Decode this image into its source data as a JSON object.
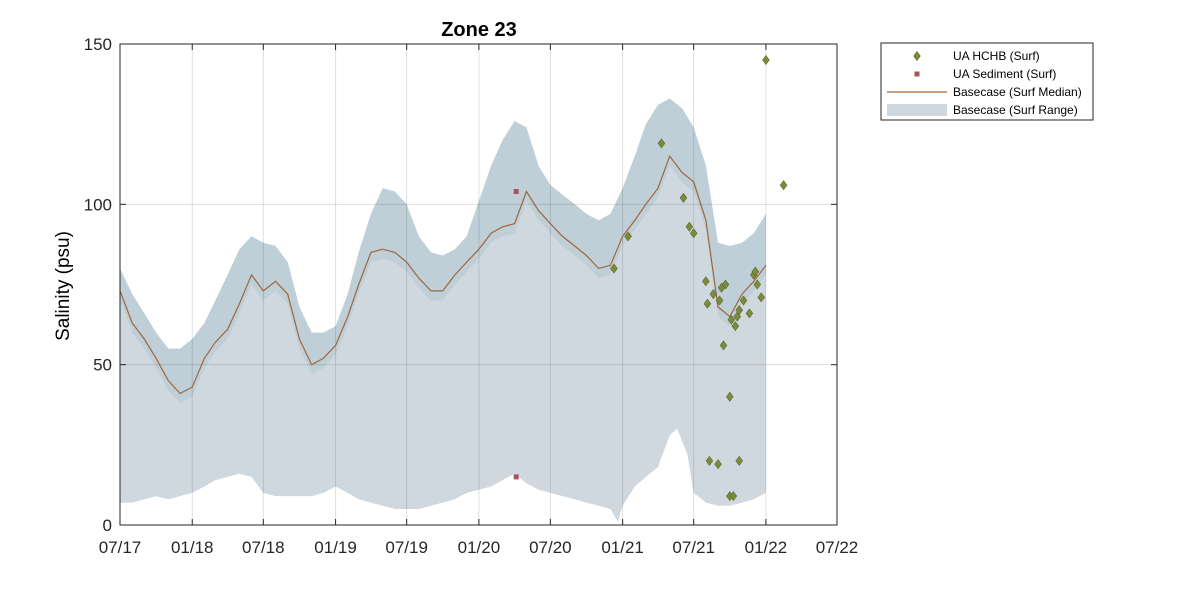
{
  "chart_data": {
    "type": "line",
    "title": "Zone 23",
    "xlabel": "",
    "ylabel": "Salinity (psu)",
    "ylim": [
      0,
      150
    ],
    "xlim": [
      "2017-07-01",
      "2022-07-01"
    ],
    "x_ticks": [
      "07/17",
      "01/18",
      "07/18",
      "01/19",
      "07/19",
      "01/20",
      "07/20",
      "01/21",
      "07/21",
      "01/22",
      "07/22"
    ],
    "y_ticks": [
      "0",
      "50",
      "100",
      "150"
    ],
    "grid": true,
    "legend_position": "outside-top-right",
    "colors": {
      "hchb": "#7b8c3d",
      "hchb_edge": "#5a6a2a",
      "sediment": "#a8545c",
      "median": "#a0663a",
      "range_fill": "#cfd8de",
      "range_fill_upper": "#b7ccd6"
    },
    "series": [
      {
        "name": "UA HCHB (Surf)",
        "kind": "scatter",
        "points": [
          [
            "2020-12-10",
            80
          ],
          [
            "2021-01-15",
            90
          ],
          [
            "2021-04-10",
            119
          ],
          [
            "2021-06-05",
            102
          ],
          [
            "2021-06-20",
            93
          ],
          [
            "2021-07-01",
            91
          ],
          [
            "2021-08-01",
            76
          ],
          [
            "2021-08-05",
            69
          ],
          [
            "2021-08-10",
            20
          ],
          [
            "2021-08-20",
            72
          ],
          [
            "2021-09-01",
            19
          ],
          [
            "2021-09-05",
            70
          ],
          [
            "2021-09-10",
            74
          ],
          [
            "2021-09-15",
            56
          ],
          [
            "2021-09-20",
            75
          ],
          [
            "2021-10-01",
            40
          ],
          [
            "2021-10-01",
            9
          ],
          [
            "2021-10-05",
            64
          ],
          [
            "2021-10-10",
            9
          ],
          [
            "2021-10-15",
            62
          ],
          [
            "2021-10-20",
            65
          ],
          [
            "2021-10-25",
            67
          ],
          [
            "2021-10-25",
            20
          ],
          [
            "2021-11-05",
            70
          ],
          [
            "2021-11-20",
            66
          ],
          [
            "2021-12-01",
            78
          ],
          [
            "2021-12-05",
            79
          ],
          [
            "2021-12-10",
            75
          ],
          [
            "2021-12-20",
            71
          ],
          [
            "2022-01-01",
            145
          ],
          [
            "2022-02-15",
            106
          ]
        ]
      },
      {
        "name": "UA Sediment (Surf)",
        "kind": "scatter",
        "points": [
          [
            "2020-04-05",
            104
          ],
          [
            "2020-04-05",
            15
          ]
        ]
      },
      {
        "name": "Basecase (Surf Median)",
        "kind": "line",
        "points": [
          [
            "2017-07-01",
            73
          ],
          [
            "2017-08-01",
            63
          ],
          [
            "2017-09-01",
            58
          ],
          [
            "2017-10-01",
            52
          ],
          [
            "2017-11-01",
            45
          ],
          [
            "2017-12-01",
            41
          ],
          [
            "2018-01-01",
            43
          ],
          [
            "2018-02-01",
            52
          ],
          [
            "2018-03-01",
            57
          ],
          [
            "2018-04-01",
            61
          ],
          [
            "2018-05-01",
            69
          ],
          [
            "2018-06-01",
            78
          ],
          [
            "2018-07-01",
            73
          ],
          [
            "2018-08-01",
            76
          ],
          [
            "2018-09-01",
            72
          ],
          [
            "2018-10-01",
            58
          ],
          [
            "2018-11-01",
            50
          ],
          [
            "2018-12-01",
            52
          ],
          [
            "2019-01-01",
            56
          ],
          [
            "2019-02-01",
            65
          ],
          [
            "2019-03-01",
            75
          ],
          [
            "2019-04-01",
            85
          ],
          [
            "2019-05-01",
            86
          ],
          [
            "2019-06-01",
            85
          ],
          [
            "2019-07-01",
            82
          ],
          [
            "2019-08-01",
            77
          ],
          [
            "2019-09-01",
            73
          ],
          [
            "2019-10-01",
            73
          ],
          [
            "2019-11-01",
            78
          ],
          [
            "2019-12-01",
            82
          ],
          [
            "2020-01-01",
            86
          ],
          [
            "2020-02-01",
            91
          ],
          [
            "2020-03-01",
            93
          ],
          [
            "2020-04-01",
            94
          ],
          [
            "2020-05-01",
            104
          ],
          [
            "2020-06-01",
            98
          ],
          [
            "2020-07-01",
            94
          ],
          [
            "2020-08-01",
            90
          ],
          [
            "2020-09-01",
            87
          ],
          [
            "2020-10-01",
            84
          ],
          [
            "2020-11-01",
            80
          ],
          [
            "2020-12-01",
            81
          ],
          [
            "2021-01-01",
            90
          ],
          [
            "2021-02-01",
            95
          ],
          [
            "2021-03-01",
            100
          ],
          [
            "2021-04-01",
            105
          ],
          [
            "2021-05-01",
            115
          ],
          [
            "2021-06-01",
            110
          ],
          [
            "2021-07-01",
            107
          ],
          [
            "2021-08-01",
            95
          ],
          [
            "2021-09-01",
            68
          ],
          [
            "2021-10-01",
            65
          ],
          [
            "2021-11-01",
            72
          ],
          [
            "2021-12-01",
            76
          ],
          [
            "2022-01-01",
            81
          ]
        ]
      },
      {
        "name": "Basecase (Surf Range)",
        "kind": "area",
        "upper": [
          [
            "2017-07-01",
            80
          ],
          [
            "2017-08-01",
            72
          ],
          [
            "2017-09-01",
            66
          ],
          [
            "2017-10-01",
            60
          ],
          [
            "2017-11-01",
            55
          ],
          [
            "2017-12-01",
            55
          ],
          [
            "2018-01-01",
            58
          ],
          [
            "2018-02-01",
            63
          ],
          [
            "2018-03-01",
            70
          ],
          [
            "2018-04-01",
            78
          ],
          [
            "2018-05-01",
            86
          ],
          [
            "2018-06-01",
            90
          ],
          [
            "2018-07-01",
            88
          ],
          [
            "2018-08-01",
            87
          ],
          [
            "2018-09-01",
            82
          ],
          [
            "2018-10-01",
            68
          ],
          [
            "2018-11-01",
            60
          ],
          [
            "2018-12-01",
            60
          ],
          [
            "2019-01-01",
            62
          ],
          [
            "2019-02-01",
            72
          ],
          [
            "2019-03-01",
            85
          ],
          [
            "2019-04-01",
            97
          ],
          [
            "2019-05-01",
            105
          ],
          [
            "2019-06-01",
            104
          ],
          [
            "2019-07-01",
            100
          ],
          [
            "2019-08-01",
            90
          ],
          [
            "2019-09-01",
            85
          ],
          [
            "2019-10-01",
            84
          ],
          [
            "2019-11-01",
            86
          ],
          [
            "2019-12-01",
            90
          ],
          [
            "2020-01-01",
            101
          ],
          [
            "2020-02-01",
            112
          ],
          [
            "2020-03-01",
            120
          ],
          [
            "2020-04-01",
            126
          ],
          [
            "2020-05-01",
            124
          ],
          [
            "2020-06-01",
            112
          ],
          [
            "2020-07-01",
            106
          ],
          [
            "2020-08-01",
            103
          ],
          [
            "2020-09-01",
            100
          ],
          [
            "2020-10-01",
            97
          ],
          [
            "2020-11-01",
            95
          ],
          [
            "2020-12-01",
            97
          ],
          [
            "2021-01-01",
            105
          ],
          [
            "2021-02-01",
            115
          ],
          [
            "2021-03-01",
            125
          ],
          [
            "2021-04-01",
            131
          ],
          [
            "2021-05-01",
            133
          ],
          [
            "2021-06-01",
            130
          ],
          [
            "2021-07-01",
            124
          ],
          [
            "2021-08-01",
            112
          ],
          [
            "2021-09-01",
            88
          ],
          [
            "2021-10-01",
            87
          ],
          [
            "2021-11-01",
            88
          ],
          [
            "2021-12-01",
            91
          ],
          [
            "2022-01-01",
            97
          ]
        ],
        "lower": [
          [
            "2017-07-01",
            7
          ],
          [
            "2017-08-01",
            7
          ],
          [
            "2017-09-01",
            8
          ],
          [
            "2017-10-01",
            9
          ],
          [
            "2017-11-01",
            8
          ],
          [
            "2017-12-01",
            9
          ],
          [
            "2018-01-01",
            10
          ],
          [
            "2018-02-01",
            12
          ],
          [
            "2018-03-01",
            14
          ],
          [
            "2018-04-01",
            15
          ],
          [
            "2018-05-01",
            16
          ],
          [
            "2018-06-01",
            15
          ],
          [
            "2018-07-01",
            10
          ],
          [
            "2018-08-01",
            9
          ],
          [
            "2018-09-01",
            9
          ],
          [
            "2018-10-01",
            9
          ],
          [
            "2018-11-01",
            9
          ],
          [
            "2018-12-01",
            10
          ],
          [
            "2019-01-01",
            12
          ],
          [
            "2019-02-01",
            10
          ],
          [
            "2019-03-01",
            8
          ],
          [
            "2019-04-01",
            7
          ],
          [
            "2019-05-01",
            6
          ],
          [
            "2019-06-01",
            5
          ],
          [
            "2019-07-01",
            5
          ],
          [
            "2019-08-01",
            5
          ],
          [
            "2019-09-01",
            6
          ],
          [
            "2019-10-01",
            7
          ],
          [
            "2019-11-01",
            8
          ],
          [
            "2019-12-01",
            10
          ],
          [
            "2020-01-01",
            11
          ],
          [
            "2020-02-01",
            12
          ],
          [
            "2020-03-01",
            14
          ],
          [
            "2020-04-01",
            16
          ],
          [
            "2020-05-01",
            13
          ],
          [
            "2020-06-01",
            11
          ],
          [
            "2020-07-01",
            10
          ],
          [
            "2020-08-01",
            9
          ],
          [
            "2020-09-01",
            8
          ],
          [
            "2020-10-01",
            7
          ],
          [
            "2020-11-01",
            6
          ],
          [
            "2020-12-01",
            5
          ],
          [
            "2020-12-20",
            1
          ],
          [
            "2021-01-01",
            6
          ],
          [
            "2021-02-01",
            12
          ],
          [
            "2021-03-01",
            15
          ],
          [
            "2021-04-01",
            18
          ],
          [
            "2021-05-01",
            28
          ],
          [
            "2021-05-20",
            30
          ],
          [
            "2021-06-15",
            22
          ],
          [
            "2021-07-01",
            10
          ],
          [
            "2021-08-01",
            7
          ],
          [
            "2021-09-01",
            6
          ],
          [
            "2021-10-01",
            6
          ],
          [
            "2021-11-01",
            7
          ],
          [
            "2021-12-01",
            8
          ],
          [
            "2022-01-01",
            10
          ]
        ]
      }
    ]
  }
}
